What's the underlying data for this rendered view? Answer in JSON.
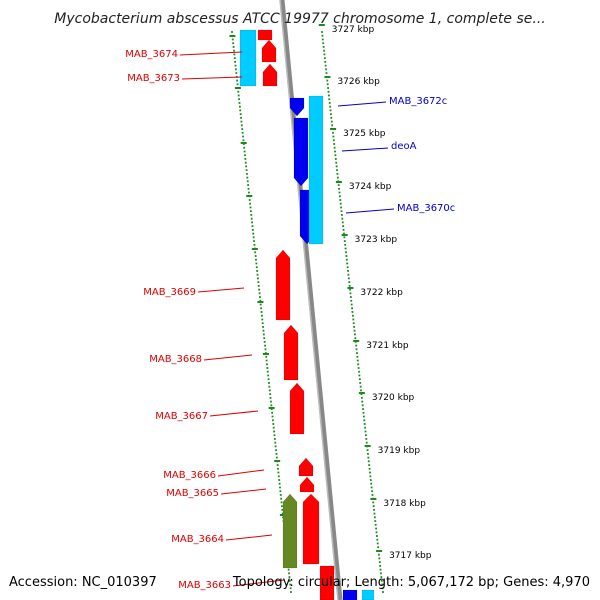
{
  "title": "Mycobacterium abscessus ATCC 19977 chromosome 1, complete se...",
  "footer": {
    "accession": "Accession: NC_010397",
    "topology": "Topology: circular; Length: 5,067,172 bp; Genes: 4,970"
  },
  "scale_labels": [
    "3727 kbp",
    "3726 kbp",
    "3725 kbp",
    "3724 kbp",
    "3723 kbp",
    "3722 kbp",
    "3721 kbp",
    "3720 kbp",
    "3719 kbp",
    "3718 kbp",
    "3717 kbp"
  ],
  "gene_labels": [
    {
      "text": "MAB_3674",
      "strand": "minus"
    },
    {
      "text": "MAB_3673",
      "strand": "minus"
    },
    {
      "text": "MAB_3672c",
      "strand": "plus"
    },
    {
      "text": "deoA",
      "strand": "plus"
    },
    {
      "text": "MAB_3670c",
      "strand": "plus"
    },
    {
      "text": "MAB_3669",
      "strand": "minus"
    },
    {
      "text": "MAB_3668",
      "strand": "minus"
    },
    {
      "text": "MAB_3667",
      "strand": "minus"
    },
    {
      "text": "MAB_3666",
      "strand": "minus"
    },
    {
      "text": "MAB_3665",
      "strand": "minus"
    },
    {
      "text": "MAB_3664",
      "strand": "minus"
    },
    {
      "text": "MAB_3663",
      "strand": "minus"
    }
  ],
  "colors": {
    "backbone": "#888888",
    "gene_minus": "#ff0000",
    "gene_plus": "#0000ee",
    "cds_cyan": "#00ccff",
    "rna_green": "#668822",
    "guide_dots": "#1a8a1a",
    "label_red": "#dd0000",
    "label_blue": "#0000cc"
  }
}
